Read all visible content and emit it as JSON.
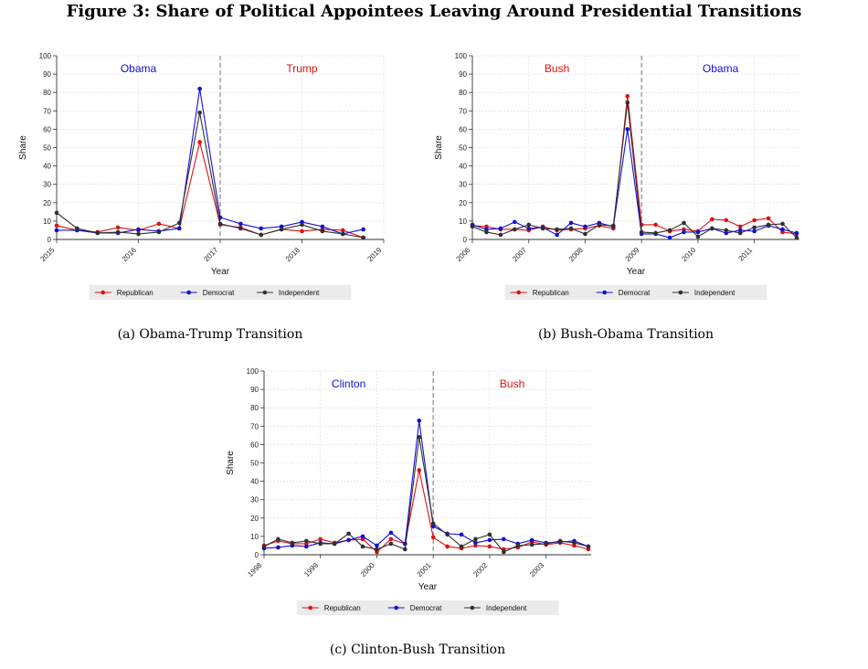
{
  "figure": {
    "title": "Figure 3: Share of Political Appointees Leaving Around Presidential Transitions"
  },
  "colors": {
    "Republican": "#e01010",
    "Democrat": "#1010d8",
    "Independent": "#303030",
    "left_label_a": "#1010d8",
    "right_label_a": "#e01010"
  },
  "chart_data": [
    {
      "type": "line",
      "panel": "a",
      "caption": "(a) Obama-Trump Transition",
      "xlabel": "Year",
      "ylabel": "Share",
      "xlim": [
        2015,
        2019
      ],
      "ylim": [
        0,
        100
      ],
      "yticks": [
        0,
        10,
        20,
        30,
        40,
        50,
        60,
        70,
        80,
        90,
        100
      ],
      "xticks": [
        "2015",
        "2016",
        "2017",
        "2018",
        "2019"
      ],
      "transition_x": 2017,
      "regime_labels": [
        {
          "text": "Obama",
          "side": "left",
          "color": "#1010d8"
        },
        {
          "text": "Trump",
          "side": "right",
          "color": "#e01010"
        }
      ],
      "x": [
        2015.0,
        2015.25,
        2015.5,
        2015.75,
        2016.0,
        2016.25,
        2016.5,
        2016.75,
        2017.0,
        2017.25,
        2017.5,
        2017.75,
        2018.0,
        2018.25,
        2018.5,
        2018.75
      ],
      "series": [
        {
          "name": "Republican",
          "values": [
            7.5,
            5,
            4,
            6.5,
            5,
            8.5,
            6,
            53,
            8,
            6.5,
            2.5,
            5.5,
            4.5,
            5.5,
            5,
            1
          ]
        },
        {
          "name": "Democrat",
          "values": [
            5,
            5,
            3.5,
            3.5,
            5.5,
            4.5,
            6,
            82,
            12,
            8.5,
            6,
            7,
            9.5,
            7,
            3,
            5.5
          ]
        },
        {
          "name": "Independent",
          "values": [
            14.5,
            6,
            3.5,
            4,
            3,
            4,
            9,
            69,
            8.5,
            6,
            2.5,
            5.5,
            8,
            4.5,
            3,
            1
          ]
        }
      ],
      "legend": {
        "position": "bottom",
        "entries": [
          "Republican",
          "Democrat",
          "Independent"
        ]
      }
    },
    {
      "type": "line",
      "panel": "b",
      "caption": "(b) Bush-Obama Transition",
      "xlabel": "Year",
      "ylabel": "Share",
      "xlim": [
        2006,
        2011.8
      ],
      "ylim": [
        0,
        100
      ],
      "yticks": [
        0,
        10,
        20,
        30,
        40,
        50,
        60,
        70,
        80,
        90,
        100
      ],
      "xticks": [
        "2006",
        "2007",
        "2008",
        "2009",
        "2010",
        "2011"
      ],
      "transition_x": 2009,
      "regime_labels": [
        {
          "text": "Bush",
          "side": "left",
          "color": "#e01010"
        },
        {
          "text": "Obama",
          "side": "right",
          "color": "#1010d8"
        }
      ],
      "x": [
        2006.0,
        2006.25,
        2006.5,
        2006.75,
        2007.0,
        2007.25,
        2007.5,
        2007.75,
        2008.0,
        2008.25,
        2008.5,
        2008.75,
        2009.0,
        2009.25,
        2009.5,
        2009.75,
        2010.0,
        2010.25,
        2010.5,
        2010.75,
        2011.0,
        2011.25,
        2011.5,
        2011.75
      ],
      "series": [
        {
          "name": "Republican",
          "values": [
            7.5,
            7,
            5.5,
            5.5,
            5,
            7,
            5,
            5.5,
            6,
            7.5,
            6,
            78,
            8,
            8,
            4.5,
            5.5,
            4.5,
            11,
            10.5,
            7,
            10.5,
            11.5,
            4,
            3
          ]
        },
        {
          "name": "Democrat",
          "values": [
            8,
            5.5,
            6,
            9.5,
            6,
            6.5,
            2.5,
            9,
            7,
            9,
            7,
            60,
            3,
            3,
            1,
            4,
            4,
            6,
            3.5,
            5,
            4.5,
            7.5,
            5.5,
            3.5
          ]
        },
        {
          "name": "Independent",
          "values": [
            7,
            4,
            2.5,
            5.5,
            8,
            6,
            5.5,
            6,
            3,
            8,
            7.5,
            74.5,
            4,
            3.5,
            5,
            9,
            1.5,
            6,
            5,
            3.5,
            6.5,
            8,
            8.5,
            1
          ]
        }
      ],
      "legend": {
        "position": "bottom",
        "entries": [
          "Republican",
          "Democrat",
          "Independent"
        ]
      }
    },
    {
      "type": "line",
      "panel": "c",
      "caption": "(c) Clinton-Bush Transition",
      "xlabel": "Year",
      "ylabel": "Share",
      "xlim": [
        1998,
        2003.8
      ],
      "ylim": [
        0,
        100
      ],
      "yticks": [
        0,
        10,
        20,
        30,
        40,
        50,
        60,
        70,
        80,
        90,
        100
      ],
      "xticks": [
        "1998",
        "1999",
        "2000",
        "2001",
        "2002",
        "2003"
      ],
      "transition_x": 2001,
      "regime_labels": [
        {
          "text": "Clinton",
          "side": "left",
          "color": "#1010d8"
        },
        {
          "text": "Bush",
          "side": "right",
          "color": "#e01010"
        }
      ],
      "x": [
        1998.0,
        1998.25,
        1998.5,
        1998.75,
        1999.0,
        1999.25,
        1999.5,
        1999.75,
        2000.0,
        2000.25,
        2000.5,
        2000.75,
        2001.0,
        2001.25,
        2001.5,
        2001.75,
        2002.0,
        2002.25,
        2002.5,
        2002.75,
        2003.0,
        2003.25,
        2003.5,
        2003.75
      ],
      "series": [
        {
          "name": "Republican",
          "values": [
            5,
            7.5,
            6,
            6,
            8.5,
            6.5,
            8,
            8.5,
            1.5,
            8.5,
            6,
            46,
            9.5,
            4.5,
            3.5,
            5,
            4.5,
            3,
            4,
            7,
            5.5,
            6.5,
            5,
            3
          ]
        },
        {
          "name": "Democrat",
          "values": [
            3.5,
            4,
            5,
            4.5,
            6.5,
            6,
            8,
            10,
            5,
            12,
            6,
            73,
            15.5,
            11.5,
            11,
            6.5,
            8,
            8.5,
            6,
            8,
            6.5,
            7,
            7.5,
            4.5
          ]
        },
        {
          "name": "Independent",
          "values": [
            4.5,
            8.5,
            6.5,
            7.5,
            6,
            6,
            11.5,
            4.5,
            3,
            6,
            3,
            64,
            17,
            11,
            4.5,
            8.5,
            11,
            1.5,
            5,
            5.5,
            6,
            7.5,
            6.5,
            4.5
          ]
        }
      ],
      "legend": {
        "position": "bottom",
        "entries": [
          "Republican",
          "Democrat",
          "Independent"
        ]
      }
    }
  ]
}
